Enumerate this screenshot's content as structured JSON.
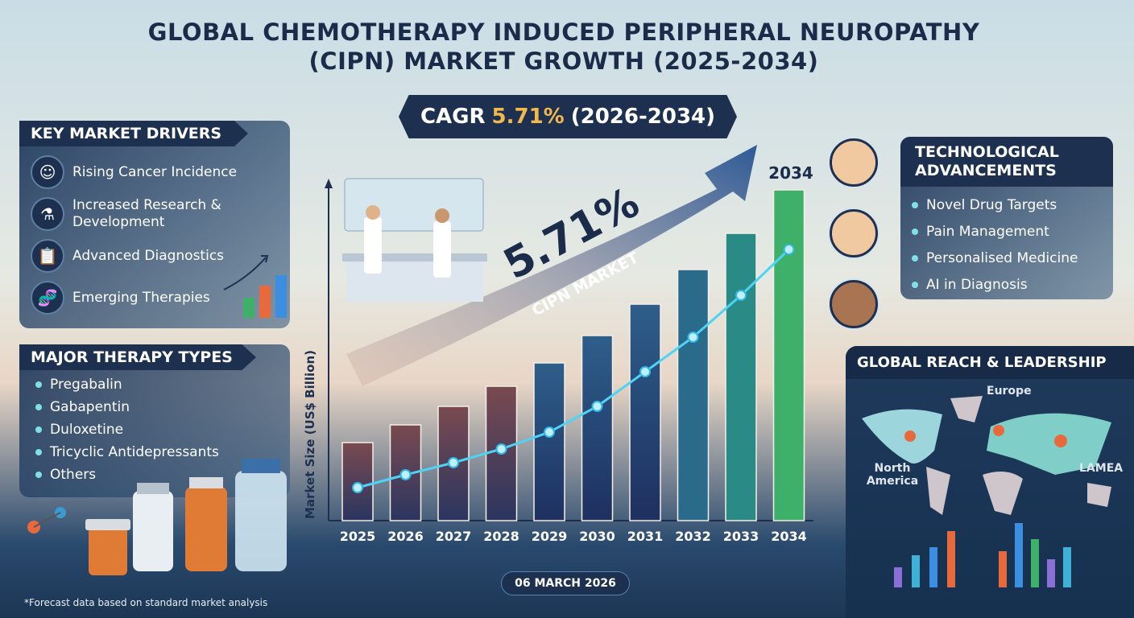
{
  "title_line1": "GLOBAL CHEMOTHERAPY INDUCED PERIPHERAL NEUROPATHY",
  "title_line2": "(CIPN) MARKET GROWTH (2025-2034)",
  "cagr": {
    "label": "CAGR",
    "value": "5.71%",
    "period": "(2026-2034)"
  },
  "arrow": {
    "big_value": "5.71%",
    "label": "CIPN MARKET"
  },
  "key_drivers": {
    "title": "KEY MARKET DRIVERS",
    "items": [
      {
        "label": "Rising Cancer Incidence",
        "icon": "head-icon"
      },
      {
        "label": "Increased Research & Development",
        "icon": "flask-icon"
      },
      {
        "label": "Advanced Diagnostics",
        "icon": "clipboard-search-icon"
      },
      {
        "label": "Emerging Therapies",
        "icon": "dna-icon"
      }
    ]
  },
  "therapy_types": {
    "title": "MAJOR THERAPY TYPES",
    "items": [
      "Pregabalin",
      "Gabapentin",
      "Duloxetine",
      "Tricyclic Antidepressants",
      "Others"
    ]
  },
  "tech": {
    "title_line1": "TECHNOLOGICAL",
    "title_line2": "ADVANCEMENTS",
    "items": [
      "Novel Drug Targets",
      "Pain Management",
      "Personalised Medicine",
      "AI in Diagnosis"
    ]
  },
  "global": {
    "title": "GLOBAL REACH & LEADERSHIP",
    "regions": [
      "Europe",
      "North America",
      "LAMEA"
    ]
  },
  "date": "06 MARCH 2026",
  "footnote": "*Forecast data based on standard market analysis",
  "colors": {
    "navy": "#1d3050",
    "accent": "#f2b84b",
    "line": "#4fd3f5",
    "green": "#3fb06a"
  },
  "chart_data": {
    "type": "bar",
    "ylabel": "Market Size (US$ Billion)",
    "top_label": "2034",
    "categories": [
      "2025",
      "2026",
      "2027",
      "2028",
      "2029",
      "2030",
      "2031",
      "2032",
      "2033",
      "2034"
    ],
    "series": [
      {
        "type": "bar",
        "values": [
          97,
          119,
          142,
          167,
          196,
          230,
          269,
          312,
          357,
          411
        ]
      },
      {
        "type": "line",
        "values": [
          41,
          57,
          72,
          89,
          110,
          142,
          185,
          228,
          280,
          337
        ]
      }
    ],
    "grid": false
  }
}
